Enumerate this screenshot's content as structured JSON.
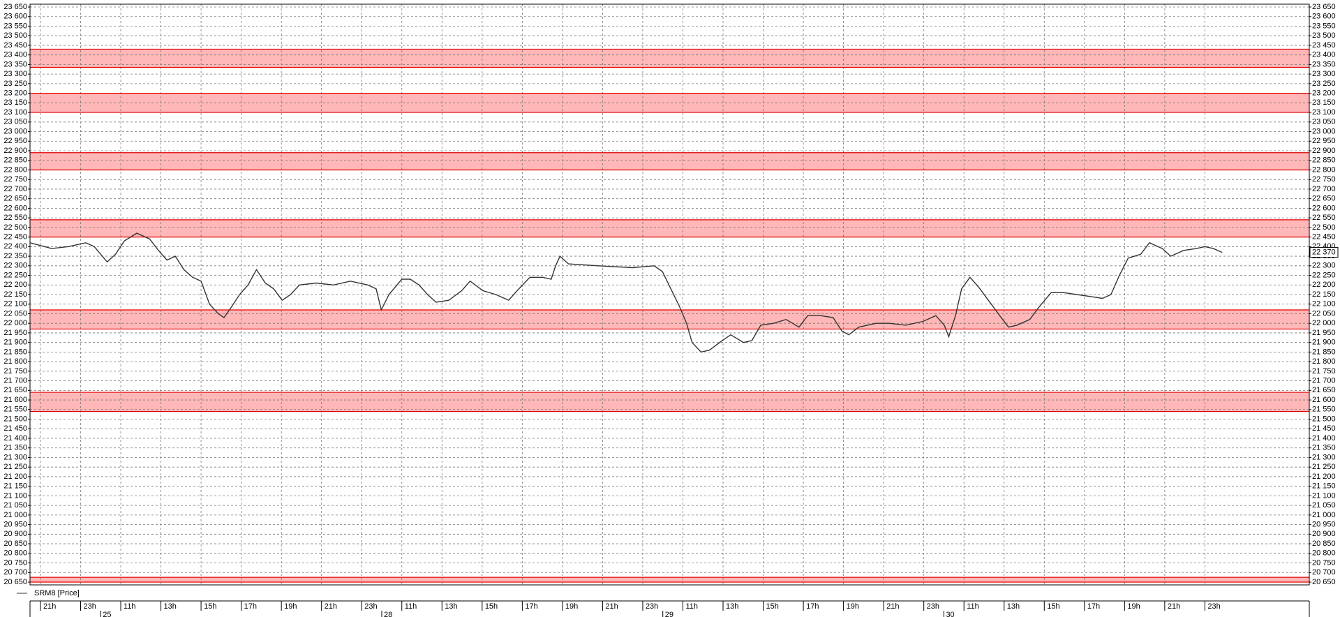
{
  "chart_data": {
    "type": "line",
    "series": [
      {
        "name": "SRM8 [Price]",
        "color": "#333333",
        "x": [
          -0.26,
          0.28,
          0.7,
          1.13,
          1.34,
          1.66,
          1.87,
          2.09,
          2.4,
          2.72,
          2.94,
          3.15,
          3.36,
          3.57,
          3.79,
          4.0,
          4.21,
          4.43,
          4.57,
          4.74,
          4.96,
          5.17,
          5.38,
          5.6,
          5.81,
          6.02,
          6.23,
          6.45,
          6.87,
          7.3,
          7.72,
          8.15,
          8.36,
          8.49,
          8.68,
          9.0,
          9.21,
          9.43,
          9.64,
          9.85,
          10.17,
          10.49,
          10.7,
          11.02,
          11.34,
          11.66,
          11.87,
          12.19,
          12.51,
          12.72,
          12.83,
          12.94,
          13.15,
          13.89,
          14.74,
          15.28,
          15.49,
          15.7,
          15.91,
          16.09,
          16.23,
          16.45,
          16.66,
          16.98,
          17.19,
          17.51,
          17.72,
          17.94,
          18.26,
          18.57,
          18.89,
          19.11,
          19.43,
          19.74,
          19.96,
          20.13,
          20.38,
          20.81,
          21.13,
          21.55,
          21.98,
          22.3,
          22.51,
          22.62,
          22.79,
          22.94,
          23.15,
          23.36,
          23.68,
          23.89,
          24.11,
          24.32,
          24.64,
          24.85,
          25.17,
          25.49,
          25.81,
          26.13,
          26.45,
          26.66,
          26.87,
          27.09,
          27.4,
          27.62,
          27.94,
          28.15,
          28.47,
          28.79,
          29.0,
          29.21,
          29.43
        ],
        "values": [
          22420,
          22390,
          22400,
          22420,
          22400,
          22320,
          22360,
          22430,
          22470,
          22440,
          22380,
          22330,
          22350,
          22280,
          22240,
          22220,
          22100,
          22050,
          22030,
          22080,
          22150,
          22200,
          22280,
          22210,
          22180,
          22120,
          22150,
          22200,
          22210,
          22200,
          22220,
          22200,
          22180,
          22070,
          22150,
          22230,
          22230,
          22200,
          22150,
          22110,
          22120,
          22170,
          22220,
          22170,
          22150,
          22120,
          22170,
          22240,
          22240,
          22230,
          22300,
          22350,
          22310,
          22300,
          22290,
          22300,
          22270,
          22180,
          22090,
          22000,
          21900,
          21850,
          21860,
          21910,
          21940,
          21900,
          21910,
          21990,
          22000,
          22020,
          21980,
          22040,
          22040,
          22030,
          21960,
          21940,
          21980,
          22000,
          22000,
          21990,
          22010,
          22040,
          21990,
          21930,
          22040,
          22180,
          22240,
          22190,
          22100,
          22040,
          21980,
          21990,
          22020,
          22080,
          22160,
          22160,
          22150,
          22140,
          22130,
          22150,
          22250,
          22340,
          22360,
          22420,
          22390,
          22350,
          22380,
          22390,
          22400,
          22390,
          22370
        ]
      }
    ],
    "xlim": [
      -0.26,
      31.6
    ],
    "xticks": [
      {
        "value": 0,
        "label": "21h"
      },
      {
        "value": 1,
        "label": "23h"
      },
      {
        "value": 2,
        "label": "11h"
      },
      {
        "value": 3,
        "label": "13h"
      },
      {
        "value": 4,
        "label": "15h"
      },
      {
        "value": 5,
        "label": "17h"
      },
      {
        "value": 6,
        "label": "19h"
      },
      {
        "value": 7,
        "label": "21h"
      },
      {
        "value": 8,
        "label": "23h"
      },
      {
        "value": 9,
        "label": "11h"
      },
      {
        "value": 10,
        "label": "13h"
      },
      {
        "value": 11,
        "label": "15h"
      },
      {
        "value": 12,
        "label": "17h"
      },
      {
        "value": 13,
        "label": "19h"
      },
      {
        "value": 14,
        "label": "21h"
      },
      {
        "value": 15,
        "label": "23h"
      },
      {
        "value": 16,
        "label": "11h"
      },
      {
        "value": 17,
        "label": "13h"
      },
      {
        "value": 18,
        "label": "15h"
      },
      {
        "value": 19,
        "label": "17h"
      },
      {
        "value": 20,
        "label": "19h"
      },
      {
        "value": 21,
        "label": "21h"
      },
      {
        "value": 22,
        "label": "23h"
      },
      {
        "value": 23,
        "label": "11h"
      },
      {
        "value": 24,
        "label": "13h"
      },
      {
        "value": 25,
        "label": "15h"
      },
      {
        "value": 26,
        "label": "17h"
      },
      {
        "value": 27,
        "label": "19h"
      },
      {
        "value": 28,
        "label": "21h"
      },
      {
        "value": 29,
        "label": "23h"
      }
    ],
    "day_ticks": [
      {
        "value": 1.5,
        "label": "25"
      },
      {
        "value": 8.5,
        "label": "28"
      },
      {
        "value": 15.5,
        "label": "29"
      },
      {
        "value": 22.5,
        "label": "30"
      }
    ],
    "ylim": [
      20650,
      23650
    ],
    "yticks": [
      {
        "value": 20650,
        "label": "20 650"
      },
      {
        "value": 20700,
        "label": "20 700"
      },
      {
        "value": 20750,
        "label": "20 750"
      },
      {
        "value": 20800,
        "label": "20 800"
      },
      {
        "value": 20850,
        "label": "20 850"
      },
      {
        "value": 20900,
        "label": "20 900"
      },
      {
        "value": 20950,
        "label": "20 950"
      },
      {
        "value": 21000,
        "label": "21 000"
      },
      {
        "value": 21050,
        "label": "21 050"
      },
      {
        "value": 21100,
        "label": "21 100"
      },
      {
        "value": 21150,
        "label": "21 150"
      },
      {
        "value": 21200,
        "label": "21 200"
      },
      {
        "value": 21250,
        "label": "21 250"
      },
      {
        "value": 21300,
        "label": "21 300"
      },
      {
        "value": 21350,
        "label": "21 350"
      },
      {
        "value": 21400,
        "label": "21 400"
      },
      {
        "value": 21450,
        "label": "21 450"
      },
      {
        "value": 21500,
        "label": "21 500"
      },
      {
        "value": 21550,
        "label": "21 550"
      },
      {
        "value": 21600,
        "label": "21 600"
      },
      {
        "value": 21650,
        "label": "21 650"
      },
      {
        "value": 21700,
        "label": "21 700"
      },
      {
        "value": 21750,
        "label": "21 750"
      },
      {
        "value": 21800,
        "label": "21 800"
      },
      {
        "value": 21850,
        "label": "21 850"
      },
      {
        "value": 21900,
        "label": "21 900"
      },
      {
        "value": 21950,
        "label": "21 950"
      },
      {
        "value": 22000,
        "label": "22 000"
      },
      {
        "value": 22050,
        "label": "22 050"
      },
      {
        "value": 22100,
        "label": "22 100"
      },
      {
        "value": 22150,
        "label": "22 150"
      },
      {
        "value": 22200,
        "label": "22 200"
      },
      {
        "value": 22250,
        "label": "22 250"
      },
      {
        "value": 22300,
        "label": "22 300"
      },
      {
        "value": 22350,
        "label": "22 350"
      },
      {
        "value": 22400,
        "label": "22 400"
      },
      {
        "value": 22450,
        "label": "22 450"
      },
      {
        "value": 22500,
        "label": "22 500"
      },
      {
        "value": 22550,
        "label": "22 550"
      },
      {
        "value": 22600,
        "label": "22 600"
      },
      {
        "value": 22650,
        "label": "22 650"
      },
      {
        "value": 22700,
        "label": "22 700"
      },
      {
        "value": 22750,
        "label": "22 750"
      },
      {
        "value": 22800,
        "label": "22 800"
      },
      {
        "value": 22850,
        "label": "22 850"
      },
      {
        "value": 22900,
        "label": "22 900"
      },
      {
        "value": 22950,
        "label": "22 950"
      },
      {
        "value": 23000,
        "label": "23 000"
      },
      {
        "value": 23050,
        "label": "23 050"
      },
      {
        "value": 23100,
        "label": "23 100"
      },
      {
        "value": 23150,
        "label": "23 150"
      },
      {
        "value": 23200,
        "label": "23 200"
      },
      {
        "value": 23250,
        "label": "23 250"
      },
      {
        "value": 23300,
        "label": "23 300"
      },
      {
        "value": 23350,
        "label": "23 350"
      },
      {
        "value": 23400,
        "label": "23 400"
      },
      {
        "value": 23450,
        "label": "23 450"
      },
      {
        "value": 23500,
        "label": "23 500"
      },
      {
        "value": 23550,
        "label": "23 550"
      },
      {
        "value": 23600,
        "label": "23 600"
      },
      {
        "value": 23650,
        "label": "23 650"
      }
    ],
    "zones": [
      {
        "low": 23335,
        "high": 23430
      },
      {
        "low": 23100,
        "high": 23200
      },
      {
        "low": 22800,
        "high": 22890
      },
      {
        "low": 22450,
        "high": 22540
      },
      {
        "low": 21970,
        "high": 22070
      },
      {
        "low": 21540,
        "high": 21640
      },
      {
        "low": 20650,
        "high": 20675
      }
    ],
    "zone_color": "#ff9f9f",
    "zone_edge_color": "#e00000",
    "last_price": {
      "value": 22370,
      "label": "22 370"
    },
    "grid": true
  }
}
